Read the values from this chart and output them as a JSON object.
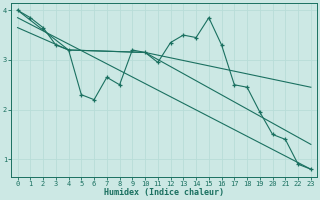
{
  "xlabel": "Humidex (Indice chaleur)",
  "bg_color": "#cce8e4",
  "line_color": "#1a7060",
  "grid_color": "#b8ddd8",
  "xlim": [
    -0.5,
    23.5
  ],
  "ylim": [
    0.65,
    4.15
  ],
  "xticks": [
    0,
    1,
    2,
    3,
    4,
    5,
    6,
    7,
    8,
    9,
    10,
    11,
    12,
    13,
    14,
    15,
    16,
    17,
    18,
    19,
    20,
    21,
    22,
    23
  ],
  "yticks": [
    1,
    2,
    3,
    4
  ],
  "main_x": [
    0,
    1,
    2,
    3,
    4,
    5,
    6,
    7,
    8,
    9,
    10,
    11,
    12,
    13,
    14,
    15,
    16,
    17,
    18,
    19,
    20,
    21,
    22,
    23
  ],
  "main_y": [
    4.0,
    3.85,
    3.65,
    3.3,
    3.2,
    2.3,
    2.2,
    2.65,
    2.5,
    3.2,
    3.15,
    2.95,
    3.35,
    3.5,
    3.45,
    3.85,
    3.3,
    2.5,
    2.45,
    1.95,
    1.5,
    1.4,
    0.9,
    0.8
  ],
  "line2_x": [
    0,
    4,
    10,
    23
  ],
  "line2_y": [
    4.0,
    3.2,
    3.15,
    2.45
  ],
  "line3_x": [
    0,
    23
  ],
  "line3_y": [
    3.85,
    0.8
  ],
  "line4_x": [
    0,
    4,
    10,
    23
  ],
  "line4_y": [
    3.65,
    3.2,
    3.15,
    1.3
  ]
}
